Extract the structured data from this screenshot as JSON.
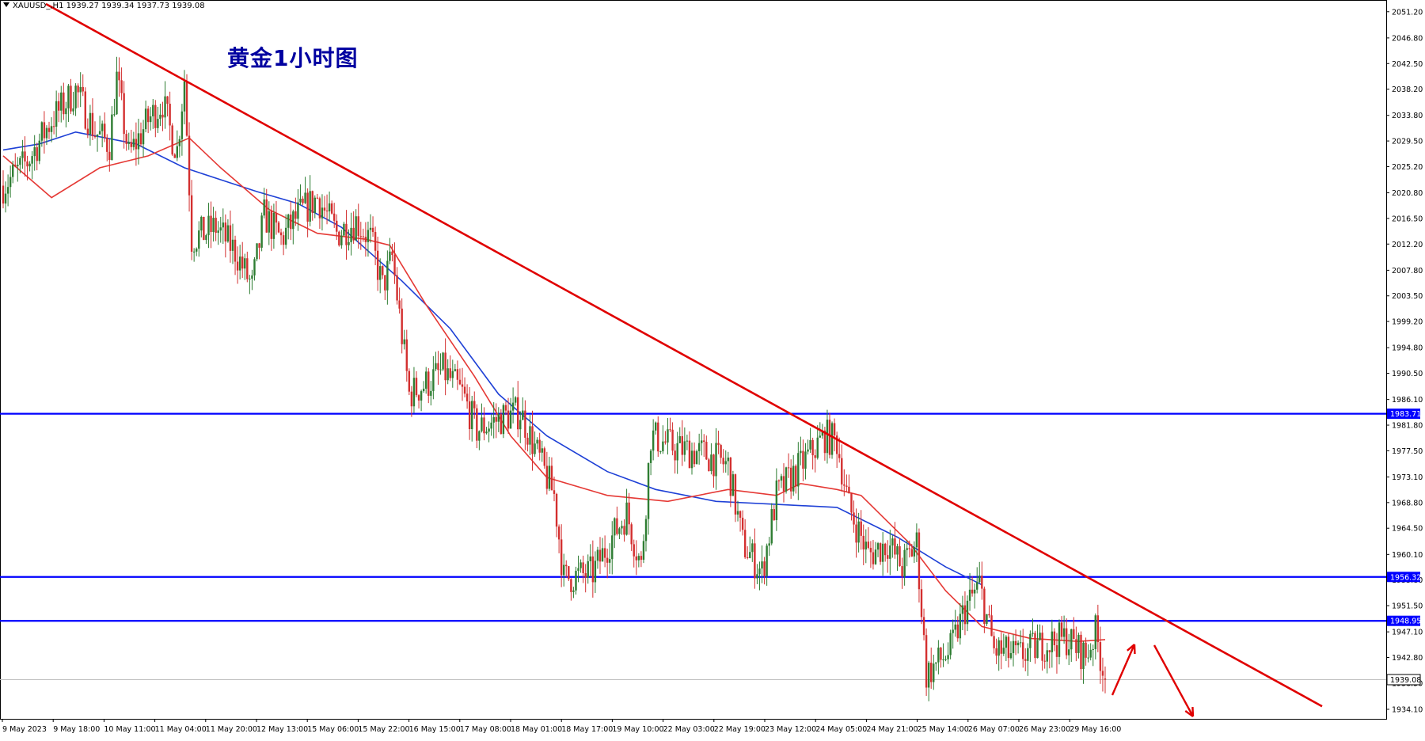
{
  "header": {
    "symbol_line": "XAUUSD_,H1  1939.27 1939.34 1937.73 1939.08"
  },
  "annotation_title": "黄金1小时图",
  "colors": {
    "bull": "#2e7d32",
    "bear": "#d32f2f",
    "ma_fast": "#e53935",
    "ma_slow": "#1e40d6",
    "hline": "#0000ff",
    "trendline": "#e00000",
    "tag_bg": "#0000ff"
  },
  "chart_data": {
    "type": "candlestick",
    "symbol": "XAUUSD_",
    "timeframe": "H1",
    "last_bar": {
      "open": 1939.27,
      "high": 1939.34,
      "low": 1937.73,
      "close": 1939.08
    },
    "current_price": "1939.08",
    "ylim": [
      1932.5,
      2052.9
    ],
    "y_ticks": [
      "2051.20",
      "2046.80",
      "2042.50",
      "2038.20",
      "2033.80",
      "2029.50",
      "2025.20",
      "2020.80",
      "2016.50",
      "2012.20",
      "2007.80",
      "2003.50",
      "1999.20",
      "1994.80",
      "1990.50",
      "1986.10",
      "1981.80",
      "1977.50",
      "1973.10",
      "1968.80",
      "1964.50",
      "1960.10",
      "1955.80",
      "1951.50",
      "1947.10",
      "1942.80",
      "1938.50",
      "1934.10"
    ],
    "x_ticks": [
      "9 May 2023",
      "9 May 18:00",
      "10 May 11:00",
      "11 May 04:00",
      "11 May 20:00",
      "12 May 13:00",
      "15 May 06:00",
      "15 May 22:00",
      "16 May 15:00",
      "17 May 08:00",
      "18 May 01:00",
      "18 May 17:00",
      "19 May 10:00",
      "22 May 03:00",
      "22 May 19:00",
      "23 May 12:00",
      "24 May 05:00",
      "24 May 21:00",
      "25 May 14:00",
      "26 May 07:00",
      "26 May 23:00",
      "29 May 16:00"
    ],
    "horizontal_levels": [
      {
        "price": 1983.71,
        "label": "1983.71"
      },
      {
        "price": 1956.32,
        "label": "1956.32"
      },
      {
        "price": 1948.95,
        "label": "1948.95"
      }
    ],
    "trendline": {
      "start_price": 2052.5,
      "end_price": 1934.6
    },
    "price_path": [
      [
        2022.0,
        0
      ],
      [
        2026.0,
        10
      ],
      [
        2033.0,
        20
      ],
      [
        2038.0,
        30
      ],
      [
        2031.0,
        38
      ],
      [
        2029.0,
        44
      ],
      [
        2040.0,
        47
      ],
      [
        2027.0,
        52
      ],
      [
        2033.0,
        60
      ],
      [
        2036.0,
        66
      ],
      [
        2030.0,
        70
      ],
      [
        2028.0,
        72
      ],
      [
        2040.0,
        75
      ],
      [
        2013.0,
        78
      ],
      [
        2015.0,
        88
      ],
      [
        2011.0,
        96
      ],
      [
        2005.0,
        103
      ],
      [
        2017.0,
        108
      ],
      [
        2013.0,
        115
      ],
      [
        2017.0,
        122
      ],
      [
        2020.0,
        130
      ],
      [
        2014.0,
        138
      ],
      [
        2016.0,
        146
      ],
      [
        2013.0,
        152
      ],
      [
        2005.0,
        157
      ],
      [
        2010.0,
        161
      ],
      [
        1987.0,
        168
      ],
      [
        1989.0,
        176
      ],
      [
        1991.0,
        182
      ],
      [
        1987.0,
        190
      ],
      [
        1981.0,
        196
      ],
      [
        1983.0,
        206
      ],
      [
        1984.0,
        214
      ],
      [
        1976.0,
        222
      ],
      [
        1970.0,
        228
      ],
      [
        1956.0,
        232
      ],
      [
        1957.0,
        244
      ],
      [
        1963.0,
        252
      ],
      [
        1967.0,
        258
      ],
      [
        1958.0,
        264
      ],
      [
        1980.0,
        268
      ],
      [
        1978.0,
        278
      ],
      [
        1977.0,
        290
      ],
      [
        1975.0,
        300
      ],
      [
        1962.0,
        306
      ],
      [
        1957.0,
        314
      ],
      [
        1970.0,
        320
      ],
      [
        1975.0,
        330
      ],
      [
        1980.0,
        340
      ],
      [
        1979.0,
        345
      ],
      [
        1968.0,
        350
      ],
      [
        1960.0,
        358
      ],
      [
        1962.0,
        366
      ],
      [
        1958.0,
        372
      ],
      [
        1962.0,
        378
      ],
      [
        1940.0,
        382
      ],
      [
        1944.0,
        392
      ],
      [
        1951.0,
        398
      ],
      [
        1955.0,
        404
      ],
      [
        1944.0,
        410
      ],
      [
        1943.0,
        420
      ],
      [
        1945.0,
        430
      ],
      [
        1946.0,
        440
      ],
      [
        1943.0,
        448
      ],
      [
        1947.0,
        452
      ],
      [
        1939.1,
        456
      ]
    ],
    "ma_fast": [
      [
        2027.0,
        0
      ],
      [
        2020.0,
        20
      ],
      [
        2025.0,
        40
      ],
      [
        2027.0,
        60
      ],
      [
        2030.0,
        77
      ],
      [
        2025.0,
        90
      ],
      [
        2018.0,
        110
      ],
      [
        2014.0,
        130
      ],
      [
        2013.0,
        150
      ],
      [
        2012.0,
        160
      ],
      [
        2002.0,
        175
      ],
      [
        1990.0,
        195
      ],
      [
        1980.0,
        210
      ],
      [
        1973.0,
        225
      ],
      [
        1970.0,
        250
      ],
      [
        1969.0,
        275
      ],
      [
        1971.0,
        300
      ],
      [
        1970.0,
        320
      ],
      [
        1972.0,
        330
      ],
      [
        1971.0,
        345
      ],
      [
        1970.0,
        355
      ],
      [
        1966.0,
        365
      ],
      [
        1962.0,
        375
      ],
      [
        1954.0,
        390
      ],
      [
        1948.0,
        405
      ],
      [
        1946.0,
        425
      ],
      [
        1945.5,
        445
      ],
      [
        1945.8,
        456
      ]
    ],
    "ma_slow": [
      [
        2028.0,
        0
      ],
      [
        2029.0,
        15
      ],
      [
        2031.0,
        30
      ],
      [
        2029.0,
        55
      ],
      [
        2025.0,
        75
      ],
      [
        2023.0,
        90
      ],
      [
        2021.0,
        105
      ],
      [
        2019.0,
        122
      ],
      [
        2015.0,
        140
      ],
      [
        2006.0,
        165
      ],
      [
        1998.0,
        185
      ],
      [
        1987.0,
        205
      ],
      [
        1980.0,
        225
      ],
      [
        1974.0,
        250
      ],
      [
        1971.0,
        270
      ],
      [
        1969.0,
        295
      ],
      [
        1968.5,
        320
      ],
      [
        1968.0,
        345
      ],
      [
        1963.0,
        370
      ],
      [
        1958.0,
        390
      ],
      [
        1955.0,
        405
      ]
    ],
    "arrows": [
      {
        "direction": "up"
      },
      {
        "direction": "down"
      }
    ]
  }
}
